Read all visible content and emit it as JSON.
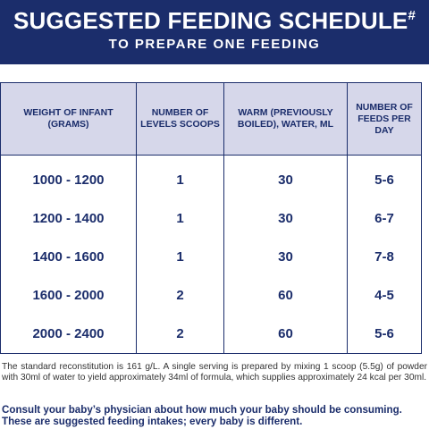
{
  "header": {
    "title": "SUGGESTED FEEDING SCHEDULE",
    "title_mark": "#",
    "subtitle": "TO PREPARE ONE FEEDING"
  },
  "table": {
    "columns": [
      "WEIGHT OF INFANT (GRAMS)",
      "NUMBER OF LEVELS SCOOPS",
      "WARM (PREVIOUSLY BOILED), WATER, ML",
      "NUMBER OF FEEDS PER DAY"
    ],
    "rows": [
      [
        "1000 - 1200",
        "1",
        "30",
        "5-6"
      ],
      [
        "1200 - 1400",
        "1",
        "30",
        "6-7"
      ],
      [
        "1400 - 1600",
        "1",
        "30",
        "7-8"
      ],
      [
        "1600 - 2000",
        "2",
        "60",
        "4-5"
      ],
      [
        "2000 - 2400",
        "2",
        "60",
        "5-6"
      ]
    ]
  },
  "footer": {
    "note": "The standard reconstitution is 161 g/L. A single serving is prepared by mixing 1 scoop (5.5g) of powder with 30ml of water to yield approximately 34ml of formula, which supplies approximately 24 kcal per 30ml.",
    "advice": "Consult your baby’s physician about how much your baby should be consuming. These are suggested feeding intakes; every baby is different."
  }
}
